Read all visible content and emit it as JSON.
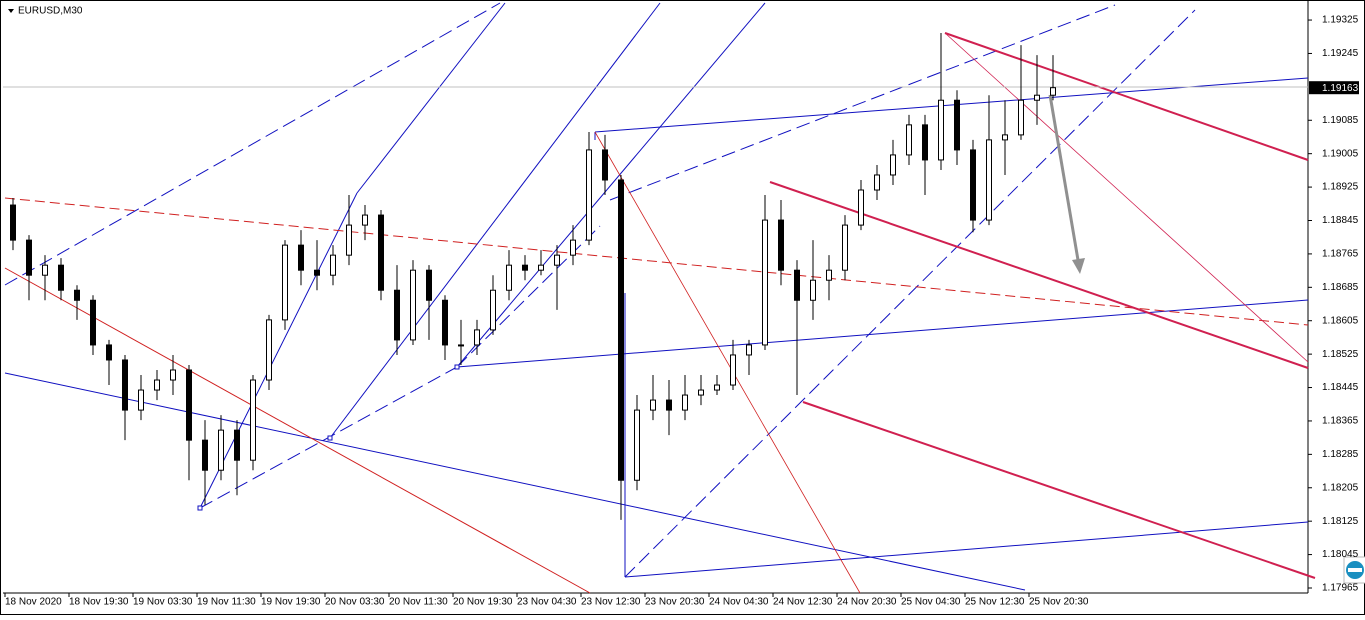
{
  "chart_data": {
    "type": "candlestick",
    "title": "EURUSD,M30",
    "categories": [
      "18 Nov 2020",
      null,
      null,
      null,
      "18 Nov 19:30",
      null,
      null,
      null,
      "19 Nov 03:30",
      null,
      null,
      null,
      "19 Nov 11:30",
      null,
      null,
      null,
      "19 Nov 19:30",
      null,
      null,
      null,
      "20 Nov 03:30",
      null,
      null,
      null,
      "20 Nov 11:30",
      null,
      null,
      null,
      "20 Nov 19:30",
      null,
      null,
      null,
      "23 Nov 04:30",
      null,
      null,
      null,
      "23 Nov 12:30",
      null,
      null,
      null,
      "23 Nov 20:30",
      null,
      null,
      null,
      "24 Nov 04:30",
      null,
      null,
      null,
      "24 Nov 12:30",
      null,
      null,
      null,
      "24 Nov 20:30",
      null,
      null,
      null,
      "25 Nov 04:30",
      null,
      null,
      null,
      "25 Nov 12:30",
      null,
      null,
      null,
      "25 Nov 20:30",
      null
    ],
    "open": [
      1.18882,
      1.18798,
      1.18714,
      1.18738,
      1.18678,
      1.18654,
      1.18547,
      1.18511,
      1.18391,
      1.18439,
      1.18463,
      1.18487,
      1.18319,
      1.18247,
      1.18343,
      1.18271,
      1.18463,
      1.18607,
      1.18786,
      1.18726,
      1.18714,
      1.18762,
      1.18834,
      1.18858,
      1.18678,
      1.18559,
      1.18726,
      1.18654,
      1.18547,
      1.18547,
      1.18583,
      1.18678,
      1.18738,
      1.18726,
      1.18738,
      1.18762,
      1.18798,
      1.19014,
      1.18942,
      1.18223,
      1.18391,
      1.18415,
      1.18391,
      1.18427,
      1.18439,
      1.18451,
      1.18523,
      1.18547,
      1.18846,
      1.18726,
      1.18654,
      1.18702,
      1.18726,
      1.18834,
      1.18918,
      1.18954,
      1.19002,
      1.19074,
      1.1899,
      1.19133,
      1.19014,
      1.18846,
      1.19038,
      1.1905,
      1.19133,
      1.19145
    ],
    "high": [
      1.18899,
      1.1881,
      1.18762,
      1.18755,
      1.1869,
      1.18666,
      1.18559,
      1.18523,
      1.18475,
      1.18487,
      1.18523,
      1.18499,
      1.18367,
      1.18379,
      1.18367,
      1.18475,
      1.18619,
      1.18798,
      1.18822,
      1.18798,
      1.18786,
      1.18906,
      1.18882,
      1.1887,
      1.18738,
      1.1875,
      1.18738,
      1.18666,
      1.18607,
      1.18607,
      1.18714,
      1.18774,
      1.18762,
      1.18774,
      1.18786,
      1.18834,
      1.19057,
      1.1905,
      1.18954,
      1.18427,
      1.18475,
      1.18463,
      1.18475,
      1.18475,
      1.18475,
      1.18559,
      1.18559,
      1.18906,
      1.18894,
      1.1875,
      1.18798,
      1.18762,
      1.18858,
      1.18942,
      1.18978,
      1.19038,
      1.19098,
      1.19098,
      1.19294,
      1.19157,
      1.19038,
      1.19145,
      1.19133,
      1.19265,
      1.19241,
      1.19241
    ],
    "low": [
      1.18774,
      1.18654,
      1.18654,
      1.18654,
      1.18607,
      1.18523,
      1.18451,
      1.18319,
      1.18367,
      1.18415,
      1.18427,
      1.18223,
      1.18164,
      1.18223,
      1.18187,
      1.18247,
      1.18439,
      1.18583,
      1.1869,
      1.18678,
      1.1869,
      1.18738,
      1.18798,
      1.18654,
      1.18523,
      1.18547,
      1.18559,
      1.18511,
      1.18499,
      1.18523,
      1.18571,
      1.18654,
      1.18702,
      1.18714,
      1.18631,
      1.18738,
      1.18786,
      1.18906,
      1.18128,
      1.18199,
      1.18367,
      1.18331,
      1.18367,
      1.18403,
      1.18427,
      1.18439,
      1.18475,
      1.18535,
      1.1869,
      1.18427,
      1.18607,
      1.18654,
      1.18702,
      1.18822,
      1.18894,
      1.1893,
      1.18978,
      1.18906,
      1.18966,
      1.18978,
      1.18817,
      1.18834,
      1.18954,
      1.19038,
      1.19074,
      1.19133
    ],
    "close": [
      1.18798,
      1.18714,
      1.18738,
      1.18678,
      1.18654,
      1.18547,
      1.18511,
      1.18391,
      1.18439,
      1.18463,
      1.18487,
      1.18319,
      1.18247,
      1.18343,
      1.18271,
      1.18463,
      1.18607,
      1.18786,
      1.18726,
      1.18714,
      1.18762,
      1.18834,
      1.18858,
      1.18678,
      1.18559,
      1.18726,
      1.18654,
      1.18547,
      1.18547,
      1.18583,
      1.18678,
      1.18738,
      1.18726,
      1.18738,
      1.18762,
      1.18798,
      1.19014,
      1.18942,
      1.18223,
      1.18391,
      1.18415,
      1.18391,
      1.18427,
      1.18439,
      1.18451,
      1.18523,
      1.18547,
      1.18846,
      1.18726,
      1.18654,
      1.18702,
      1.18726,
      1.18834,
      1.18918,
      1.18954,
      1.19002,
      1.19074,
      1.1899,
      1.19133,
      1.19014,
      1.18846,
      1.19038,
      1.1905,
      1.19133,
      1.19145,
      1.19163
    ],
    "last_price": 1.19163,
    "ylim": [
      1.17953,
      1.19373
    ],
    "yticks": [
      1.19325,
      1.19245,
      1.19085,
      1.19005,
      1.18925,
      1.18845,
      1.18765,
      1.18685,
      1.18605,
      1.18525,
      1.18445,
      1.18365,
      1.18285,
      1.18205,
      1.18125,
      1.18045,
      1.17965
    ],
    "up_color": "#ffffff",
    "down_color": "#000000",
    "outline_color": "#000000"
  }
}
